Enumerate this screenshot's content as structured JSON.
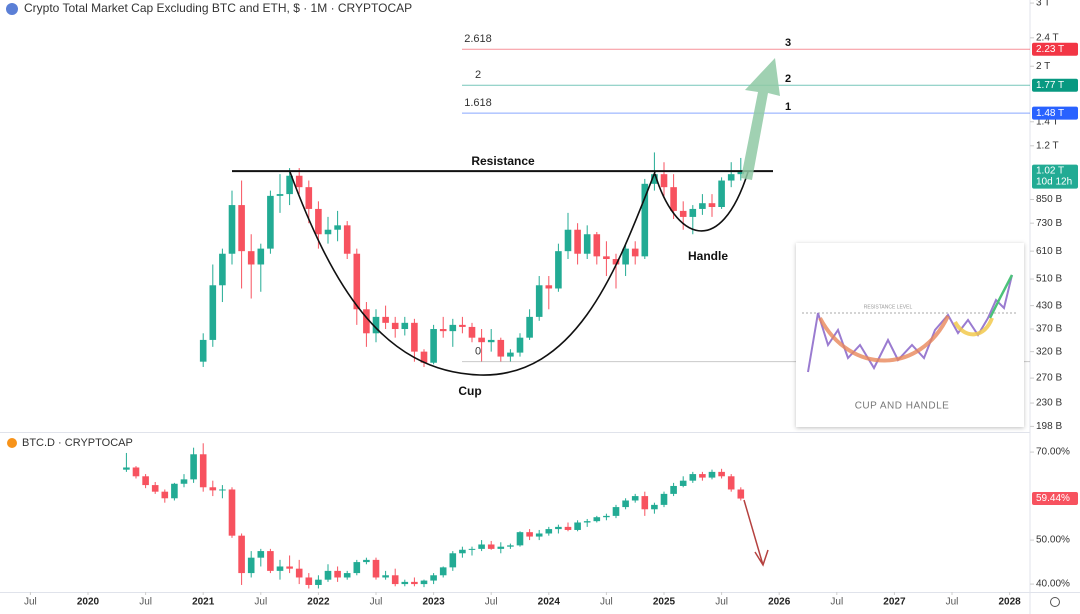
{
  "chart_data": [
    {
      "type": "candlestick",
      "title": "Crypto Total Market Cap Excluding BTC and ETH, $ · 1M · CRYPTOCAP",
      "log_scale": true,
      "up_color": "#22ab94",
      "down_color": "#f7525f",
      "ylim": [
        191,
        3060
      ],
      "yticks": [
        {
          "value": 3000,
          "label": "3 T"
        },
        {
          "value": 2400,
          "label": "2.4 T"
        },
        {
          "value": 2000,
          "label": "2 T"
        },
        {
          "value": 1400,
          "label": "1.4 T"
        },
        {
          "value": 1200,
          "label": "1.2 T"
        },
        {
          "value": 850,
          "label": "850 B"
        },
        {
          "value": 730,
          "label": "730 B"
        },
        {
          "value": 610,
          "label": "610 B"
        },
        {
          "value": 510,
          "label": "510 B"
        },
        {
          "value": 430,
          "label": "430 B"
        },
        {
          "value": 370,
          "label": "370 B"
        },
        {
          "value": 320,
          "label": "320 B"
        },
        {
          "value": 270,
          "label": "270 B"
        },
        {
          "value": 230,
          "label": "230 B"
        },
        {
          "value": 198,
          "label": "198 B"
        }
      ],
      "x": [
        "2021-01",
        "2021-02",
        "2021-03",
        "2021-04",
        "2021-05",
        "2021-06",
        "2021-07",
        "2021-08",
        "2021-09",
        "2021-10",
        "2021-11",
        "2021-12",
        "2022-01",
        "2022-02",
        "2022-03",
        "2022-04",
        "2022-05",
        "2022-06",
        "2022-07",
        "2022-08",
        "2022-09",
        "2022-10",
        "2022-11",
        "2022-12",
        "2023-01",
        "2023-02",
        "2023-03",
        "2023-04",
        "2023-05",
        "2023-06",
        "2023-07",
        "2023-08",
        "2023-09",
        "2023-10",
        "2023-11",
        "2023-12",
        "2024-01",
        "2024-02",
        "2024-03",
        "2024-04",
        "2024-05",
        "2024-06",
        "2024-07",
        "2024-08",
        "2024-09",
        "2024-10",
        "2024-11",
        "2024-12",
        "2025-01",
        "2025-02",
        "2025-03",
        "2025-04",
        "2025-05",
        "2025-06",
        "2025-07",
        "2025-08",
        "2025-09"
      ],
      "open": [
        300,
        345,
        490,
        600,
        820,
        610,
        560,
        620,
        870,
        880,
        990,
        920,
        800,
        680,
        700,
        720,
        600,
        420,
        360,
        400,
        385,
        370,
        385,
        320,
        298,
        370,
        365,
        380,
        375,
        350,
        340,
        345,
        310,
        318,
        350,
        400,
        490,
        480,
        610,
        700,
        600,
        680,
        590,
        580,
        560,
        620,
        590,
        940,
        1000,
        920,
        790,
        760,
        800,
        830,
        810,
        960,
        1000
      ],
      "high": [
        360,
        560,
        620,
        900,
        960,
        680,
        640,
        900,
        1000,
        1040,
        1040,
        960,
        840,
        760,
        790,
        740,
        620,
        440,
        420,
        430,
        400,
        400,
        395,
        325,
        380,
        400,
        395,
        400,
        385,
        370,
        370,
        350,
        325,
        360,
        420,
        520,
        520,
        640,
        780,
        730,
        720,
        690,
        650,
        600,
        640,
        650,
        970,
        1150,
        1080,
        1000,
        840,
        820,
        880,
        880,
        980,
        1080,
        1110
      ],
      "low": [
        290,
        330,
        440,
        560,
        480,
        450,
        470,
        600,
        780,
        820,
        880,
        730,
        620,
        640,
        650,
        580,
        380,
        330,
        340,
        370,
        350,
        355,
        300,
        290,
        295,
        350,
        330,
        360,
        340,
        300,
        320,
        300,
        300,
        310,
        345,
        390,
        420,
        470,
        580,
        560,
        580,
        560,
        520,
        480,
        520,
        560,
        580,
        900,
        860,
        750,
        700,
        680,
        770,
        760,
        800,
        920,
        960
      ],
      "close": [
        345,
        490,
        600,
        820,
        610,
        560,
        620,
        870,
        880,
        990,
        920,
        800,
        680,
        700,
        720,
        600,
        420,
        360,
        400,
        385,
        370,
        385,
        320,
        298,
        370,
        365,
        380,
        375,
        350,
        340,
        345,
        310,
        318,
        350,
        400,
        490,
        480,
        610,
        700,
        600,
        680,
        590,
        580,
        560,
        620,
        590,
        940,
        1000,
        920,
        790,
        760,
        800,
        830,
        810,
        960,
        1000,
        1020
      ],
      "price_labels": [
        {
          "value": 2230,
          "label": "2.23 T",
          "color": "#f23645"
        },
        {
          "value": 1770,
          "label": "1.77 T",
          "color": "#089981"
        },
        {
          "value": 1480,
          "label": "1.48 T",
          "color": "#2962ff"
        },
        {
          "value": 1020,
          "label": "1.02 T",
          "color": "#22ab94"
        }
      ],
      "countdown": "10d 12h",
      "fib_levels": [
        {
          "value": 2230,
          "label": "2.618",
          "color": "#f23645"
        },
        {
          "value": 1770,
          "label": "2",
          "color": "#089981"
        },
        {
          "value": 1480,
          "label": "1.618",
          "color": "#2962ff"
        },
        {
          "value": 300,
          "label": "0",
          "color": "#9e9e9e"
        }
      ],
      "targets": [
        "3",
        "2",
        "1"
      ],
      "resistance": {
        "value": 1020,
        "label": "Resistance"
      },
      "cup_label": "Cup",
      "handle_label": "Handle",
      "inset": {
        "title": "CUP AND HANDLE",
        "subtitle": "RESISTANCE LEVEL"
      }
    },
    {
      "type": "candlestick",
      "title": "BTC.D · CRYPTOCAP",
      "up_color": "#22ab94",
      "down_color": "#f7525f",
      "ylim": [
        38.2,
        73.2
      ],
      "yticks": [
        {
          "value": 70,
          "label": "70.00%"
        },
        {
          "value": 50,
          "label": "50.00%"
        },
        {
          "value": 40,
          "label": "40.00%"
        }
      ],
      "price_labels": [
        {
          "value": 59.44,
          "label": "59.44%",
          "color": "#f7525f"
        }
      ],
      "x": [
        "2020-05",
        "2020-06",
        "2020-07",
        "2020-08",
        "2020-09",
        "2020-10",
        "2020-11",
        "2020-12",
        "2021-01",
        "2021-02",
        "2021-03",
        "2021-04",
        "2021-05",
        "2021-06",
        "2021-07",
        "2021-08",
        "2021-09",
        "2021-10",
        "2021-11",
        "2021-12",
        "2022-01",
        "2022-02",
        "2022-03",
        "2022-04",
        "2022-05",
        "2022-06",
        "2022-07",
        "2022-08",
        "2022-09",
        "2022-10",
        "2022-11",
        "2022-12",
        "2023-01",
        "2023-02",
        "2023-03",
        "2023-04",
        "2023-05",
        "2023-06",
        "2023-07",
        "2023-08",
        "2023-09",
        "2023-10",
        "2023-11",
        "2023-12",
        "2024-01",
        "2024-02",
        "2024-03",
        "2024-04",
        "2024-05",
        "2024-06",
        "2024-07",
        "2024-08",
        "2024-09",
        "2024-10",
        "2024-11",
        "2024-12",
        "2025-01",
        "2025-02",
        "2025-03",
        "2025-04",
        "2025-05",
        "2025-06",
        "2025-07",
        "2025-08",
        "2025-09"
      ],
      "open": [
        66.0,
        66.5,
        64.5,
        62.5,
        61.0,
        59.5,
        62.8,
        63.8,
        69.5,
        62.0,
        61.3,
        61.5,
        51.0,
        42.5,
        46.0,
        47.5,
        43.0,
        44.0,
        43.5,
        41.5,
        39.8,
        41.0,
        43.0,
        41.5,
        42.5,
        45.0,
        45.5,
        41.5,
        42.0,
        40.0,
        40.5,
        40.0,
        40.8,
        42.0,
        43.8,
        47.0,
        47.8,
        48.0,
        49.0,
        48.0,
        48.5,
        48.8,
        51.8,
        50.8,
        51.5,
        52.5,
        53.0,
        52.3,
        54.0,
        54.3,
        55.2,
        55.5,
        57.5,
        59.0,
        60.0,
        57.0,
        58.0,
        60.5,
        62.3,
        63.5,
        65.0,
        64.2,
        65.5,
        64.5,
        61.5
      ],
      "high": [
        69.8,
        66.8,
        65.0,
        63.2,
        61.5,
        63.0,
        65.0,
        71.0,
        72.0,
        63.5,
        62.5,
        62.0,
        51.5,
        47.5,
        48.0,
        48.0,
        45.5,
        46.5,
        45.5,
        42.5,
        42.0,
        44.5,
        44.0,
        43.0,
        45.5,
        46.0,
        46.0,
        43.0,
        43.5,
        41.0,
        41.5,
        41.0,
        42.5,
        44.0,
        47.5,
        48.5,
        48.5,
        50.0,
        49.8,
        49.5,
        49.2,
        52.0,
        52.5,
        52.3,
        53.0,
        53.5,
        54.0,
        54.5,
        54.8,
        55.5,
        56.0,
        58.0,
        59.5,
        60.5,
        61.0,
        58.5,
        61.0,
        63.0,
        64.5,
        65.5,
        65.5,
        66.0,
        66.2,
        65.0,
        62.0
      ],
      "low": [
        65.5,
        64.0,
        61.8,
        60.5,
        58.5,
        59.0,
        62.0,
        63.0,
        61.0,
        60.0,
        59.5,
        50.5,
        39.8,
        41.5,
        44.0,
        42.5,
        41.0,
        42.5,
        40.0,
        39.0,
        39.0,
        40.5,
        40.5,
        41.0,
        42.0,
        44.5,
        41.0,
        41.0,
        39.5,
        39.5,
        39.5,
        39.3,
        40.0,
        41.5,
        43.0,
        46.0,
        46.5,
        47.5,
        47.8,
        47.0,
        48.0,
        48.5,
        50.0,
        50.0,
        51.0,
        51.5,
        52.0,
        52.0,
        53.0,
        54.0,
        54.5,
        55.0,
        57.0,
        58.5,
        55.5,
        56.0,
        57.5,
        60.0,
        62.0,
        63.0,
        63.5,
        63.8,
        64.0,
        61.0,
        59.0
      ],
      "close": [
        66.5,
        64.5,
        62.5,
        61.0,
        59.5,
        62.8,
        63.8,
        69.5,
        62.0,
        61.3,
        61.5,
        51.0,
        42.5,
        46.0,
        47.5,
        43.0,
        44.0,
        43.5,
        41.5,
        39.8,
        41.0,
        43.0,
        41.5,
        42.5,
        45.0,
        45.5,
        41.5,
        42.0,
        40.0,
        40.5,
        40.0,
        40.8,
        42.0,
        43.8,
        47.0,
        47.8,
        48.0,
        49.0,
        48.0,
        48.5,
        48.8,
        51.8,
        50.8,
        51.5,
        52.5,
        53.0,
        52.3,
        54.0,
        54.3,
        55.2,
        55.5,
        57.5,
        59.0,
        60.0,
        57.0,
        58.0,
        60.5,
        62.3,
        63.5,
        65.0,
        64.2,
        65.5,
        64.5,
        61.5,
        59.44
      ],
      "xticks": [
        {
          "value": "2019-07",
          "label": "Jul"
        },
        {
          "value": "2020-01",
          "label": "2020"
        },
        {
          "value": "2020-07",
          "label": "Jul"
        },
        {
          "value": "2021-01",
          "label": "2021"
        },
        {
          "value": "2021-07",
          "label": "Jul"
        },
        {
          "value": "2022-01",
          "label": "2022"
        },
        {
          "value": "2022-07",
          "label": "Jul"
        },
        {
          "value": "2023-01",
          "label": "2023"
        },
        {
          "value": "2023-07",
          "label": "Jul"
        },
        {
          "value": "2024-01",
          "label": "2024"
        },
        {
          "value": "2024-07",
          "label": "Jul"
        },
        {
          "value": "2025-01",
          "label": "2025"
        },
        {
          "value": "2025-07",
          "label": "Jul"
        },
        {
          "value": "2026-01",
          "label": "2026"
        },
        {
          "value": "2026-07",
          "label": "Jul"
        },
        {
          "value": "2027-01",
          "label": "2027"
        },
        {
          "value": "2027-07",
          "label": "Jul"
        },
        {
          "value": "2028-01",
          "label": "2028"
        }
      ]
    }
  ]
}
